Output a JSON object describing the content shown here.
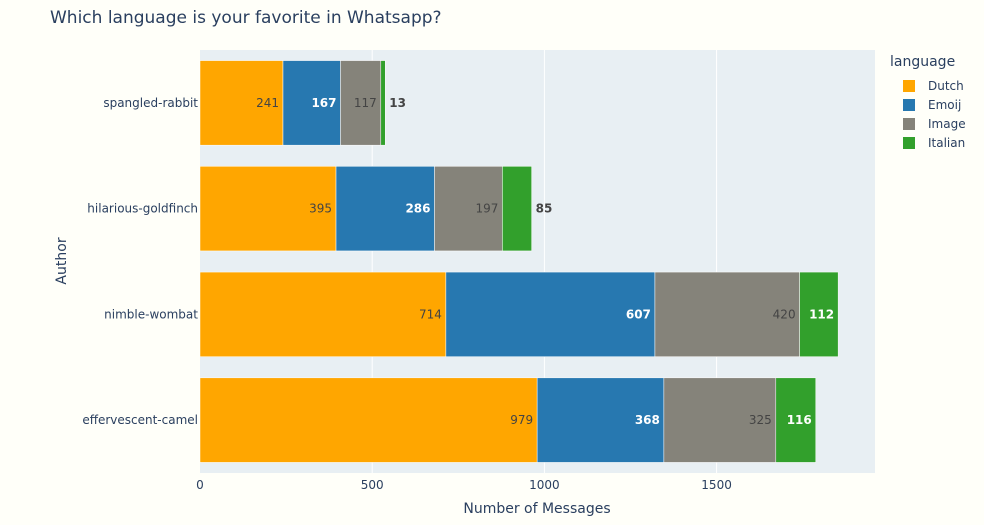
{
  "chart_data": {
    "type": "bar",
    "orientation": "horizontal",
    "stacked": true,
    "title": "Which language is your favorite in Whatsapp?",
    "xlabel": "Number of Messages",
    "ylabel": "Author",
    "xlim": [
      0,
      1960
    ],
    "xticks": [
      0,
      500,
      1000,
      1500
    ],
    "xtick_labels": [
      "0",
      "500",
      "1000",
      "1500"
    ],
    "legend_title": "language",
    "legend_position": "top-right",
    "background": "#e8eff3",
    "categories": [
      "spangled-rabbit",
      "hilarious-goldfinch",
      "nimble-wombat",
      "effervescent-camel"
    ],
    "series": [
      {
        "name": "Dutch",
        "color": "#ffa600",
        "label_color": "#444444",
        "values": [
          241,
          395,
          714,
          979
        ],
        "labels": [
          "241",
          "395",
          "714",
          "979"
        ]
      },
      {
        "name": "Emoij",
        "color": "#2778b0",
        "label_color": "#ffffff",
        "values": [
          167,
          286,
          607,
          368
        ],
        "labels": [
          "167",
          "286",
          "607",
          "368"
        ]
      },
      {
        "name": "Image",
        "color": "#85837a",
        "label_color": "#444444",
        "values": [
          117,
          197,
          420,
          325
        ],
        "labels": [
          "117",
          "197",
          "420",
          "325"
        ]
      },
      {
        "name": "Italian",
        "color": "#32a02c",
        "label_color": "#ffffff",
        "values": [
          13,
          85,
          112,
          116
        ],
        "labels": [
          "13",
          "85",
          "112",
          "116"
        ]
      }
    ]
  }
}
